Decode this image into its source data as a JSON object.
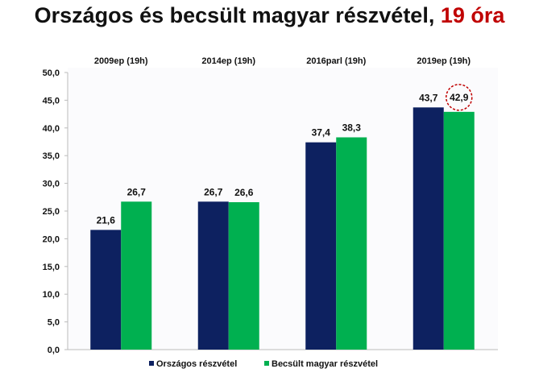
{
  "title": {
    "main": "Országos és becsült magyar részvétel,",
    "highlight": "19 óra",
    "highlight_color": "#c00000"
  },
  "chart_data": {
    "type": "bar",
    "categories": [
      "2009ep (19h)",
      "2014ep (19h)",
      "2016parl (19h)",
      "2019ep (19h)"
    ],
    "series": [
      {
        "name": "Országos részvétel",
        "color": "#0d2160",
        "values": [
          21.6,
          26.7,
          37.4,
          43.7
        ],
        "labels": [
          "21,6",
          "26,7",
          "37,4",
          "43,7"
        ]
      },
      {
        "name": "Becsült magyar részvétel",
        "color": "#00b050",
        "values": [
          26.7,
          26.6,
          38.3,
          42.9
        ],
        "labels": [
          "26,7",
          "26,6",
          "38,3",
          "42,9"
        ]
      }
    ],
    "ylim": [
      0,
      50
    ],
    "yticks": [
      "0,0",
      "5,0",
      "10,0",
      "15,0",
      "20,0",
      "25,0",
      "30,0",
      "35,0",
      "40,0",
      "45,0",
      "50,0"
    ],
    "category_position": "top",
    "legend_position": "bottom",
    "grid": false,
    "highlighted_point": {
      "series": 1,
      "category": 3,
      "style": "red dashed circle"
    }
  }
}
